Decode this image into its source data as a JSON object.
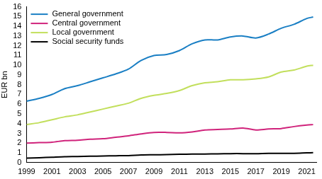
{
  "chart_data": {
    "type": "line",
    "y_label": "EUR bn",
    "x": [
      1999,
      2000,
      2001,
      2002,
      2003,
      2004,
      2005,
      2006,
      2007,
      2008,
      2009,
      2010,
      2011,
      2012,
      2013,
      2014,
      2015,
      2016,
      2017,
      2018,
      2019,
      2020,
      2021,
      2021.5
    ],
    "series": [
      {
        "name": "General government",
        "color": "#1a7fc4",
        "values": [
          6.3,
          6.6,
          7.0,
          7.6,
          7.9,
          8.3,
          8.7,
          9.1,
          9.6,
          10.5,
          11.0,
          11.1,
          11.5,
          12.2,
          12.6,
          12.6,
          12.9,
          13.0,
          12.8,
          13.2,
          13.8,
          14.2,
          14.8,
          14.95
        ]
      },
      {
        "name": "Central government",
        "color": "#d0237b",
        "values": [
          2.0,
          2.05,
          2.1,
          2.25,
          2.3,
          2.4,
          2.45,
          2.6,
          2.75,
          2.95,
          3.1,
          3.1,
          3.05,
          3.15,
          3.35,
          3.4,
          3.45,
          3.55,
          3.35,
          3.45,
          3.5,
          3.7,
          3.85,
          3.9
        ]
      },
      {
        "name": "Local government",
        "color": "#c2df5c",
        "values": [
          3.9,
          4.1,
          4.4,
          4.7,
          4.9,
          5.2,
          5.5,
          5.8,
          6.1,
          6.6,
          6.9,
          7.1,
          7.4,
          7.9,
          8.2,
          8.3,
          8.5,
          8.5,
          8.6,
          8.8,
          9.3,
          9.5,
          9.9,
          10.0
        ]
      },
      {
        "name": "Social security funds",
        "color": "#000000",
        "values": [
          0.45,
          0.5,
          0.55,
          0.6,
          0.62,
          0.65,
          0.68,
          0.7,
          0.72,
          0.78,
          0.8,
          0.82,
          0.85,
          0.88,
          0.88,
          0.9,
          0.92,
          0.92,
          0.92,
          0.95,
          0.95,
          0.95,
          1.0,
          1.02
        ]
      }
    ],
    "xlim": [
      1999,
      2021.75
    ],
    "xticks": [
      1999,
      2001,
      2003,
      2005,
      2007,
      2009,
      2011,
      2013,
      2015,
      2017,
      2019,
      2021
    ],
    "ylim": [
      0,
      16
    ],
    "yticks": [
      0,
      1,
      2,
      3,
      4,
      5,
      6,
      7,
      8,
      9,
      10,
      11,
      12,
      13,
      14,
      15,
      16
    ],
    "grid": false,
    "legend": "upper left"
  }
}
